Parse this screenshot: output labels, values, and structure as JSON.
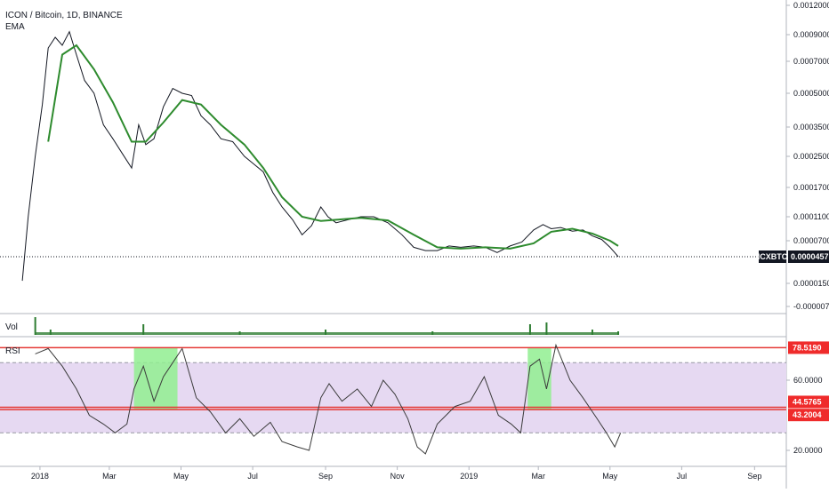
{
  "header": {
    "symbol_line": "ICON / Bitcoin, 1D, BINANCE",
    "indicator": "EMA"
  },
  "panes": {
    "volume_label": "Vol",
    "rsi_label": "RSI"
  },
  "colors": {
    "price": "#131722",
    "ema": "#2e8b2e",
    "rsi_line": "#3b3b3b",
    "rsi_band": "#e6d9f2",
    "rsi_box": "#90ee90",
    "level_line": "#e53935",
    "tag_red": "#ef2b2b",
    "tag_black": "#131722",
    "volume": "#2e7d32"
  },
  "price_axis": {
    "labels": [
      "0.0012000",
      "0.0009000",
      "0.0007000",
      "0.0005000",
      "0.0003500",
      "0.0002500",
      "0.0001700",
      "0.0001100",
      "0.0000700",
      "0.0000150",
      "-0.0000070"
    ],
    "last_tag_label": "ICXBTC",
    "last_tag_value": "0.0000457"
  },
  "rsi_axis": {
    "labels": [
      "60.0000",
      "20.0000"
    ],
    "tags": [
      "78.5190",
      "44.5765",
      "43.2004"
    ]
  },
  "time_axis": {
    "labels": [
      "2018",
      "Mar",
      "May",
      "Jul",
      "Sep",
      "Nov",
      "2019",
      "Mar",
      "May",
      "Jul",
      "Sep"
    ]
  },
  "chart_data": {
    "type": "line",
    "title": "ICON / Bitcoin, 1D, BINANCE",
    "x_unit": "date",
    "series": [
      {
        "name": "ICXBTC",
        "x": [
          "2017-12-17",
          "2017-12-22",
          "2017-12-28",
          "2018-01-03",
          "2018-01-08",
          "2018-01-14",
          "2018-01-20",
          "2018-01-26",
          "2018-02-01",
          "2018-02-08",
          "2018-02-16",
          "2018-02-24",
          "2018-03-04",
          "2018-03-12",
          "2018-03-20",
          "2018-03-26",
          "2018-04-01",
          "2018-04-08",
          "2018-04-16",
          "2018-04-24",
          "2018-05-02",
          "2018-05-10",
          "2018-05-18",
          "2018-05-26",
          "2018-06-04",
          "2018-06-14",
          "2018-06-24",
          "2018-07-02",
          "2018-07-10",
          "2018-07-18",
          "2018-07-26",
          "2018-08-04",
          "2018-08-12",
          "2018-08-20",
          "2018-08-28",
          "2018-09-03",
          "2018-09-10",
          "2018-09-20",
          "2018-10-01",
          "2018-10-12",
          "2018-10-24",
          "2018-11-05",
          "2018-11-15",
          "2018-11-25",
          "2018-12-05",
          "2018-12-15",
          "2018-12-25",
          "2019-01-05",
          "2019-01-15",
          "2019-01-25",
          "2019-02-05",
          "2019-02-15",
          "2019-02-25",
          "2019-03-05",
          "2019-03-12",
          "2019-03-20",
          "2019-03-30",
          "2019-04-08",
          "2019-04-16",
          "2019-04-24",
          "2019-05-01",
          "2019-05-05",
          "2019-05-08"
        ],
        "values": [
          1.8e-05,
          0.00011,
          0.00025,
          0.00045,
          0.0008,
          0.00088,
          0.00082,
          0.00093,
          0.00075,
          0.00058,
          0.0005,
          0.00036,
          0.00031,
          0.00026,
          0.00022,
          0.00036,
          0.00029,
          0.00031,
          0.00044,
          0.00053,
          0.0005,
          0.00049,
          0.0004,
          0.00036,
          0.00031,
          0.0003,
          0.00025,
          0.00023,
          0.00021,
          0.00016,
          0.00013,
          0.000105,
          8e-05,
          9.5e-05,
          0.00013,
          0.00011,
          0.0001,
          0.000105,
          0.00011,
          0.00011,
          0.0001,
          8e-05,
          6e-05,
          5.5e-05,
          5.5e-05,
          6.2e-05,
          6e-05,
          6.2e-05,
          6e-05,
          5.2e-05,
          6.2e-05,
          6.8e-05,
          8.8e-05,
          9.7e-05,
          9e-05,
          9.2e-05,
          8.6e-05,
          8.8e-05,
          7.8e-05,
          7.2e-05,
          6e-05,
          5.2e-05,
          4.57e-05
        ]
      },
      {
        "name": "EMA",
        "x": [
          "2018-01-08",
          "2018-01-20",
          "2018-02-01",
          "2018-02-16",
          "2018-03-04",
          "2018-03-20",
          "2018-04-01",
          "2018-04-16",
          "2018-05-02",
          "2018-05-18",
          "2018-06-04",
          "2018-06-24",
          "2018-07-10",
          "2018-07-26",
          "2018-08-12",
          "2018-08-28",
          "2018-09-10",
          "2018-10-01",
          "2018-10-24",
          "2018-11-15",
          "2018-12-05",
          "2018-12-25",
          "2019-01-15",
          "2019-02-05",
          "2019-02-25",
          "2019-03-12",
          "2019-03-30",
          "2019-04-16",
          "2019-05-01",
          "2019-05-08"
        ],
        "values": [
          0.0003,
          0.00075,
          0.00082,
          0.00065,
          0.00046,
          0.0003,
          0.0003,
          0.00037,
          0.00047,
          0.00045,
          0.00036,
          0.00029,
          0.00022,
          0.00015,
          0.00011,
          0.000103,
          0.000105,
          0.000108,
          0.000104,
          8e-05,
          6e-05,
          5.8e-05,
          6e-05,
          5.8e-05,
          6.6e-05,
          8.5e-05,
          9e-05,
          8.2e-05,
          7e-05,
          6.2e-05
        ]
      },
      {
        "name": "RSI",
        "x": [
          "2017-12-28",
          "2018-01-08",
          "2018-01-20",
          "2018-02-01",
          "2018-02-12",
          "2018-02-24",
          "2018-03-06",
          "2018-03-16",
          "2018-03-22",
          "2018-03-30",
          "2018-04-08",
          "2018-04-16",
          "2018-04-24",
          "2018-05-02",
          "2018-05-14",
          "2018-05-26",
          "2018-06-08",
          "2018-06-20",
          "2018-07-02",
          "2018-07-16",
          "2018-07-26",
          "2018-08-08",
          "2018-08-18",
          "2018-08-28",
          "2018-09-04",
          "2018-09-15",
          "2018-09-28",
          "2018-10-10",
          "2018-10-20",
          "2018-10-30",
          "2018-11-10",
          "2018-11-18",
          "2018-11-25",
          "2018-12-05",
          "2018-12-20",
          "2019-01-02",
          "2019-01-14",
          "2019-01-26",
          "2019-02-06",
          "2019-02-14",
          "2019-02-22",
          "2019-03-02",
          "2019-03-08",
          "2019-03-16",
          "2019-03-28",
          "2019-04-08",
          "2019-04-20",
          "2019-04-28",
          "2019-05-05",
          "2019-05-10"
        ],
        "values": [
          75,
          78,
          68,
          55,
          40,
          35,
          30,
          35,
          55,
          68,
          48,
          62,
          70,
          78,
          50,
          42,
          30,
          38,
          28,
          36,
          25,
          22,
          20,
          50,
          58,
          48,
          55,
          45,
          60,
          52,
          38,
          22,
          18,
          35,
          45,
          48,
          62,
          40,
          35,
          30,
          68,
          72,
          55,
          80,
          60,
          50,
          38,
          30,
          22,
          30
        ]
      }
    ],
    "volume": {
      "x": [
        "2017-12-28",
        "2018-01-10",
        "2018-03-30",
        "2018-06-20",
        "2018-09-01",
        "2018-12-01",
        "2019-02-22",
        "2019-03-08",
        "2019-04-16",
        "2019-05-08"
      ],
      "values": [
        10,
        3,
        6,
        2,
        3,
        2,
        6,
        7,
        3,
        2
      ]
    },
    "rsi_levels": {
      "upper_band": 70,
      "lower_band": 30,
      "lines": [
        78.519,
        44.5765,
        43.2004
      ]
    },
    "rsi_highlights": [
      {
        "from": "2018-03-22",
        "to": "2018-04-28",
        "low": 43.2,
        "high": 78.5
      },
      {
        "from": "2019-02-20",
        "to": "2019-03-12",
        "low": 43.2,
        "high": 78.5
      }
    ],
    "ylim": [
      -7e-06,
      0.0012
    ],
    "grid": false,
    "legend": "top-left"
  }
}
